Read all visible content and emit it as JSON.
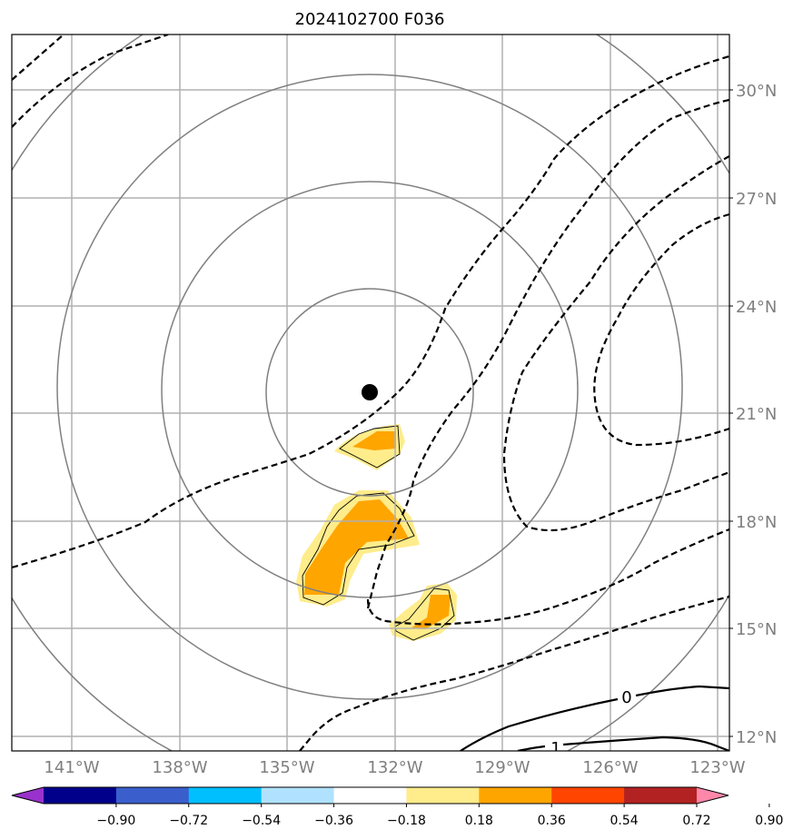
{
  "title": "2024102700 F036",
  "map": {
    "lon_ticks": [
      "141°W",
      "138°W",
      "135°W",
      "132°W",
      "129°W",
      "126°W",
      "123°W"
    ],
    "lat_ticks": [
      "30°N",
      "27°N",
      "24°N",
      "21°N",
      "18°N",
      "15°N",
      "12°N"
    ],
    "storm_center": {
      "lon": "132.7°W",
      "lat": "21.6°N"
    },
    "contour_labels": [
      "0",
      "1"
    ]
  },
  "colorbar": {
    "ticks": [
      "−0.90",
      "−0.72",
      "−0.54",
      "−0.36",
      "−0.18",
      "0.18",
      "0.36",
      "0.54",
      "0.72",
      "0.90"
    ],
    "colors": [
      "#9932cc",
      "#00008b",
      "#3a5fcd",
      "#00bfff",
      "#b0e2ff",
      "#ffffff",
      "#ffec8b",
      "#ffa500",
      "#ff4500",
      "#b22222",
      "#ff88aa"
    ]
  }
}
